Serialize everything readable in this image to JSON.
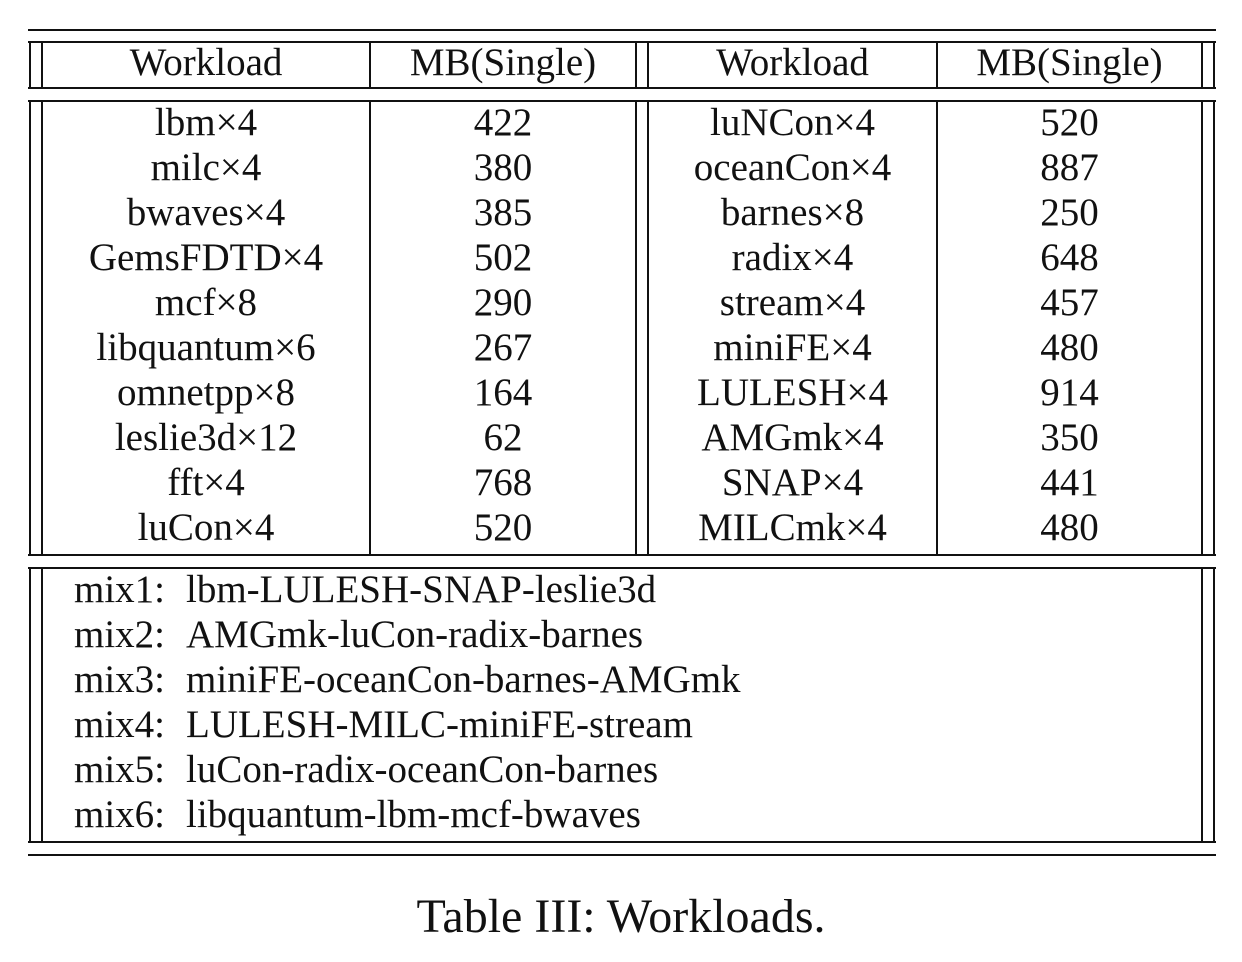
{
  "table": {
    "headers": [
      "Workload",
      "MB(Single)",
      "Workload",
      "MB(Single)"
    ],
    "left_rows": [
      [
        "lbm×4",
        "422"
      ],
      [
        "milc×4",
        "380"
      ],
      [
        "bwaves×4",
        "385"
      ],
      [
        "GemsFDTD×4",
        "502"
      ],
      [
        "mcf×8",
        "290"
      ],
      [
        "libquantum×6",
        "267"
      ],
      [
        "omnetpp×8",
        "164"
      ],
      [
        "leslie3d×12",
        "62"
      ],
      [
        "fft×4",
        "768"
      ],
      [
        "luCon×4",
        "520"
      ]
    ],
    "right_rows": [
      [
        "luNCon×4",
        "520"
      ],
      [
        "oceanCon×4",
        "887"
      ],
      [
        "barnes×8",
        "250"
      ],
      [
        "radix×4",
        "648"
      ],
      [
        "stream×4",
        "457"
      ],
      [
        "miniFE×4",
        "480"
      ],
      [
        "LULESH×4",
        "914"
      ],
      [
        "AMGmk×4",
        "350"
      ],
      [
        "SNAP×4",
        "441"
      ],
      [
        "MILCmk×4",
        "480"
      ]
    ],
    "mixes": [
      {
        "label": "mix1:",
        "value": "lbm-LULESH-SNAP-leslie3d"
      },
      {
        "label": "mix2:",
        "value": "AMGmk-luCon-radix-barnes"
      },
      {
        "label": "mix3:",
        "value": "miniFE-oceanCon-barnes-AMGmk"
      },
      {
        "label": "mix4:",
        "value": "LULESH-MILC-miniFE-stream"
      },
      {
        "label": "mix5:",
        "value": "luCon-radix-oceanCon-barnes"
      },
      {
        "label": "mix6:",
        "value": "libquantum-lbm-mcf-bwaves"
      }
    ]
  },
  "caption": "Table III: Workloads."
}
